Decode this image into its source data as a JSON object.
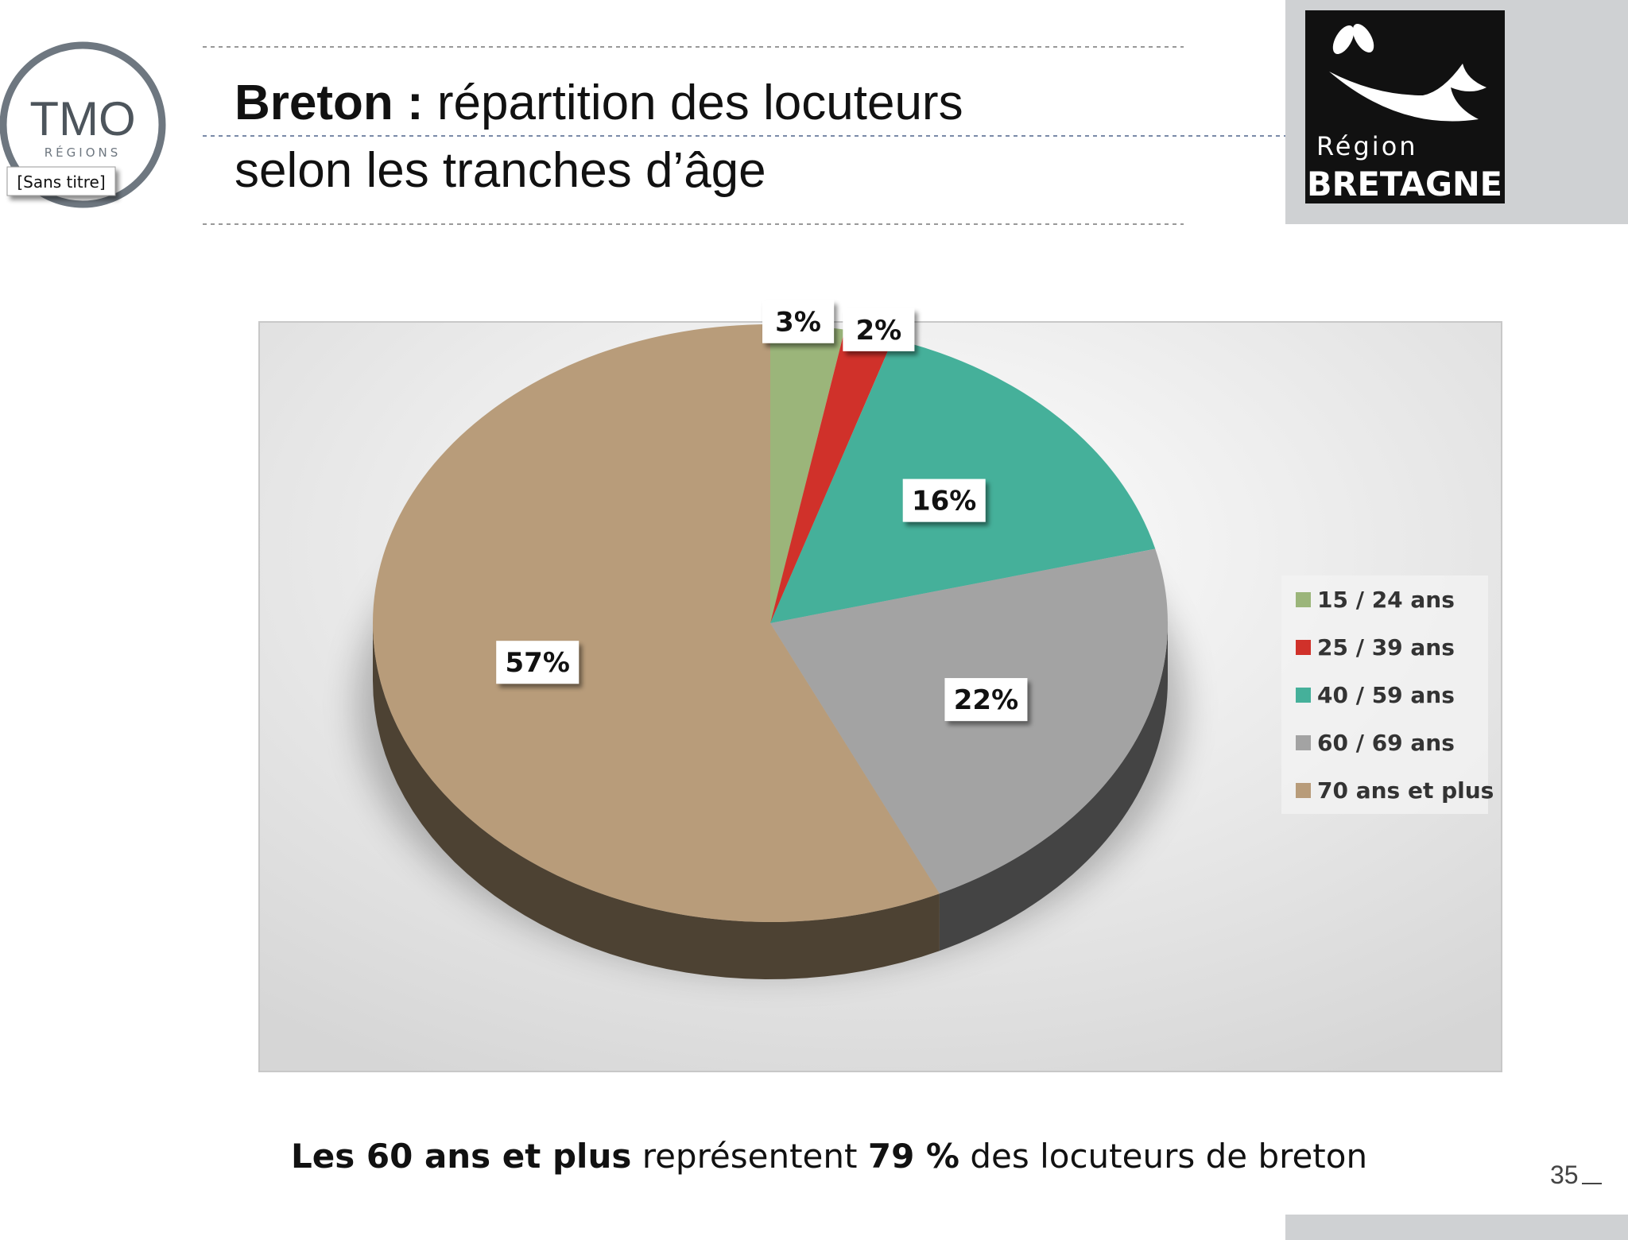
{
  "slide": {
    "title": [
      "Breton :",
      "répartition des locuteurs",
      "selon les tranches d’âge"
    ],
    "logo_left": {
      "name": "TMO",
      "sub": "RÉGIONS",
      "tag": "[Sans titre]"
    },
    "logo_right": {
      "line1": "Région",
      "line2": "BRETAGNE"
    },
    "footer": [
      "Les 60 ans et plus",
      "représentent",
      "79 %",
      "des locuteurs de breton"
    ],
    "page_number": "35"
  },
  "chart_data": {
    "type": "pie",
    "categories": [
      "15 / 24 ans",
      "25 / 39 ans",
      "40 / 59 ans",
      "60 / 69 ans",
      "70 ans et plus"
    ],
    "values": [
      3,
      2,
      16,
      22,
      57
    ],
    "value_labels": [
      "3%",
      "2%",
      "16%",
      "22%",
      "57%"
    ],
    "colors": [
      "#9bb57a",
      "#d0312a",
      "#45b09a",
      "#a3a3a3",
      "#b89c7a"
    ],
    "legend": "right"
  }
}
